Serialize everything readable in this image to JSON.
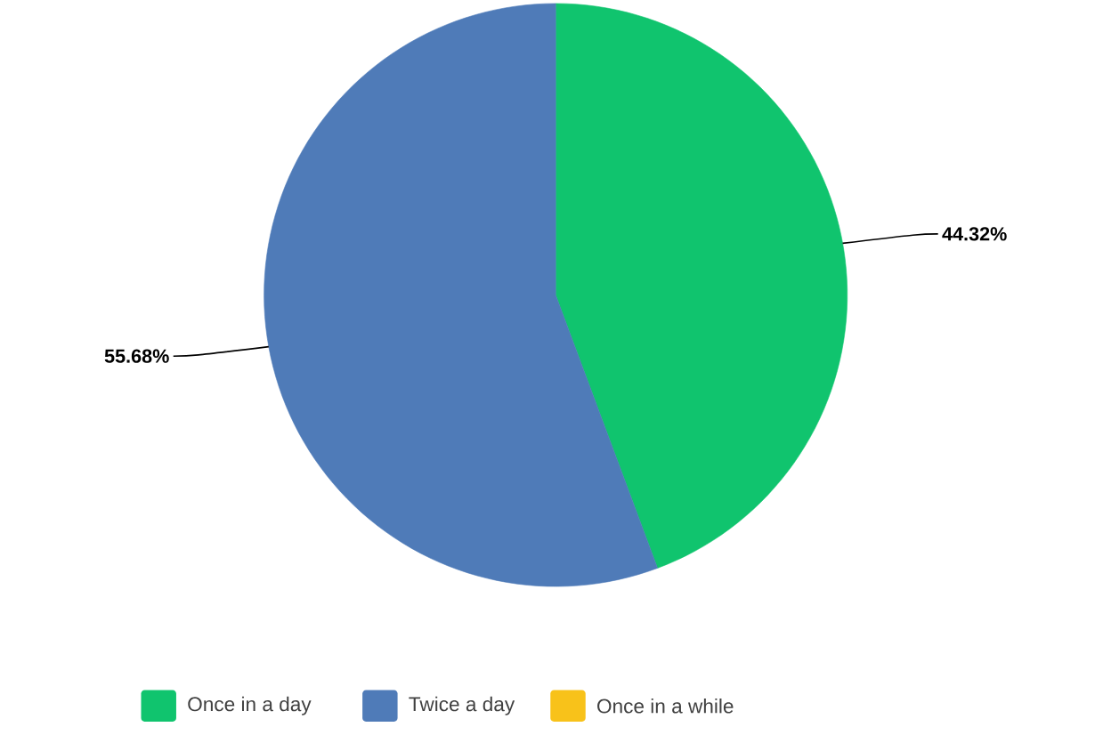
{
  "chart_data": {
    "type": "pie",
    "categories": [
      "Once in a day",
      "Twice a day",
      "Once in a while"
    ],
    "values": [
      44.32,
      55.68,
      0
    ],
    "colors": [
      "#10c46e",
      "#4f7bb8",
      "#f8c21a"
    ],
    "value_labels": [
      "44.32%",
      "55.68%",
      null
    ],
    "legend": "bottom"
  }
}
